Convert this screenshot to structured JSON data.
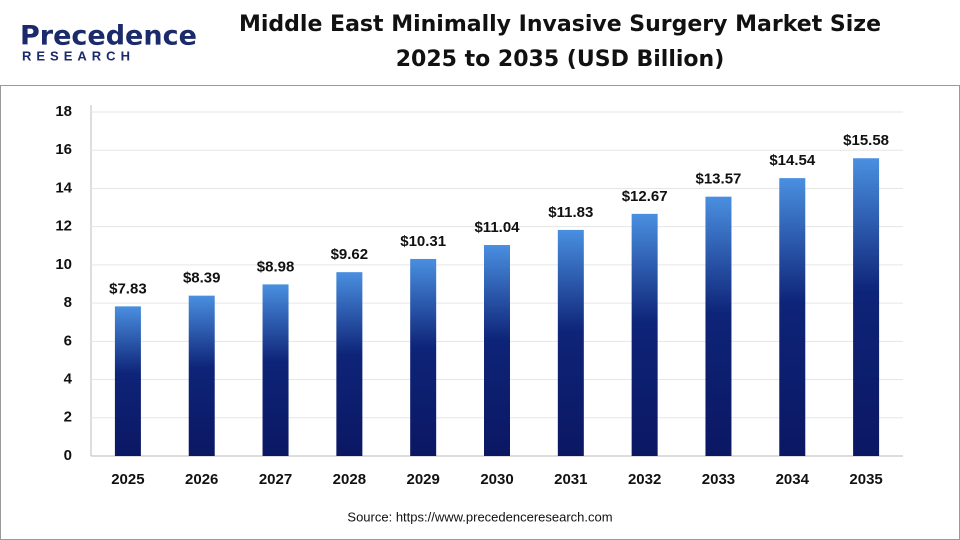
{
  "logo": {
    "name": "Precedence",
    "tagline": "RESEARCH"
  },
  "chart_data": {
    "type": "bar",
    "title": "Middle East Minimally Invasive Surgery Market Size",
    "subtitle": "2025 to 2035 (USD Billion)",
    "categories": [
      "2025",
      "2026",
      "2027",
      "2028",
      "2029",
      "2030",
      "2031",
      "2032",
      "2033",
      "2034",
      "2035"
    ],
    "values": [
      7.83,
      8.39,
      8.98,
      9.62,
      10.31,
      11.04,
      11.83,
      12.67,
      13.57,
      14.54,
      15.58
    ],
    "value_labels": [
      "$7.83",
      "$8.39",
      "$8.98",
      "$9.62",
      "$10.31",
      "$11.04",
      "$11.83",
      "$12.67",
      "$13.57",
      "$14.54",
      "$15.58"
    ],
    "color": "#0d1a6b",
    "ylim": [
      0,
      18
    ],
    "yticks": [
      0,
      2,
      4,
      6,
      8,
      10,
      12,
      14,
      16,
      18
    ],
    "grid": true,
    "source": "Source: https://www.precedenceresearch.com"
  }
}
